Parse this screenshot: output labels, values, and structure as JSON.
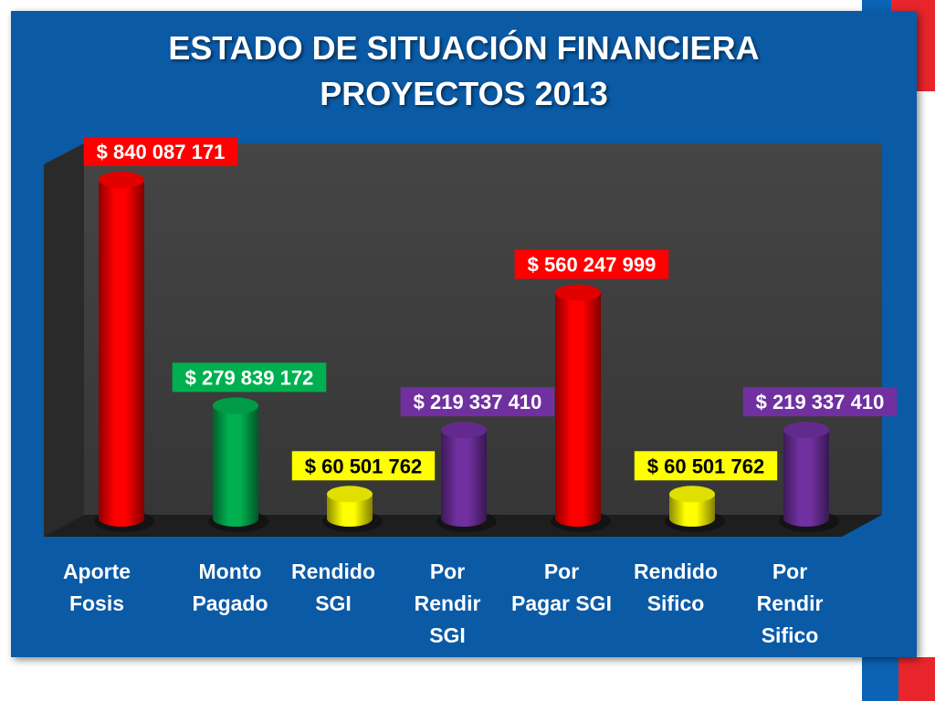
{
  "title_line1": "ESTADO DE SITUACIÓN FINANCIERA",
  "title_line2": "PROYECTOS 2013",
  "chart_data": {
    "type": "bar",
    "title": "ESTADO DE SITUACIÓN FINANCIERA PROYECTOS 2013",
    "categories": [
      [
        "Aporte",
        "Fosis"
      ],
      [
        "Monto",
        "Pagado"
      ],
      [
        "Rendido",
        "SGI"
      ],
      [
        "Por",
        "Rendir",
        "SGI"
      ],
      [
        "Por",
        "Pagar SGI"
      ],
      [
        "Rendido",
        "Sifico"
      ],
      [
        "Por",
        "Rendir",
        "Sifico"
      ]
    ],
    "values": [
      840087171,
      279839172,
      60501762,
      219337410,
      560247999,
      60501762,
      219337410
    ],
    "value_labels": [
      "$ 840 087 171",
      "$ 279 839 172",
      "$ 60 501 762",
      "$ 219 337 410",
      "$ 560 247 999",
      "$ 60 501 762",
      "$ 219 337 410"
    ],
    "bar_colors": [
      "#ff0000",
      "#00b050",
      "#ffff00",
      "#7030a0",
      "#ff0000",
      "#ffff00",
      "#7030a0"
    ],
    "label_text_colors": [
      "#ffffff",
      "#ffffff",
      "#000000",
      "#ffffff",
      "#ffffff",
      "#000000",
      "#ffffff"
    ],
    "ylim": [
      0,
      840087171
    ],
    "grid": false,
    "legend": "none",
    "style": "3d-cylinder"
  },
  "colors": {
    "slide_background": "#0a5aa6",
    "plot_wall": "#3c3c3c",
    "plot_side": "#2a2a2a",
    "plot_floor": "#1e1e1e"
  }
}
